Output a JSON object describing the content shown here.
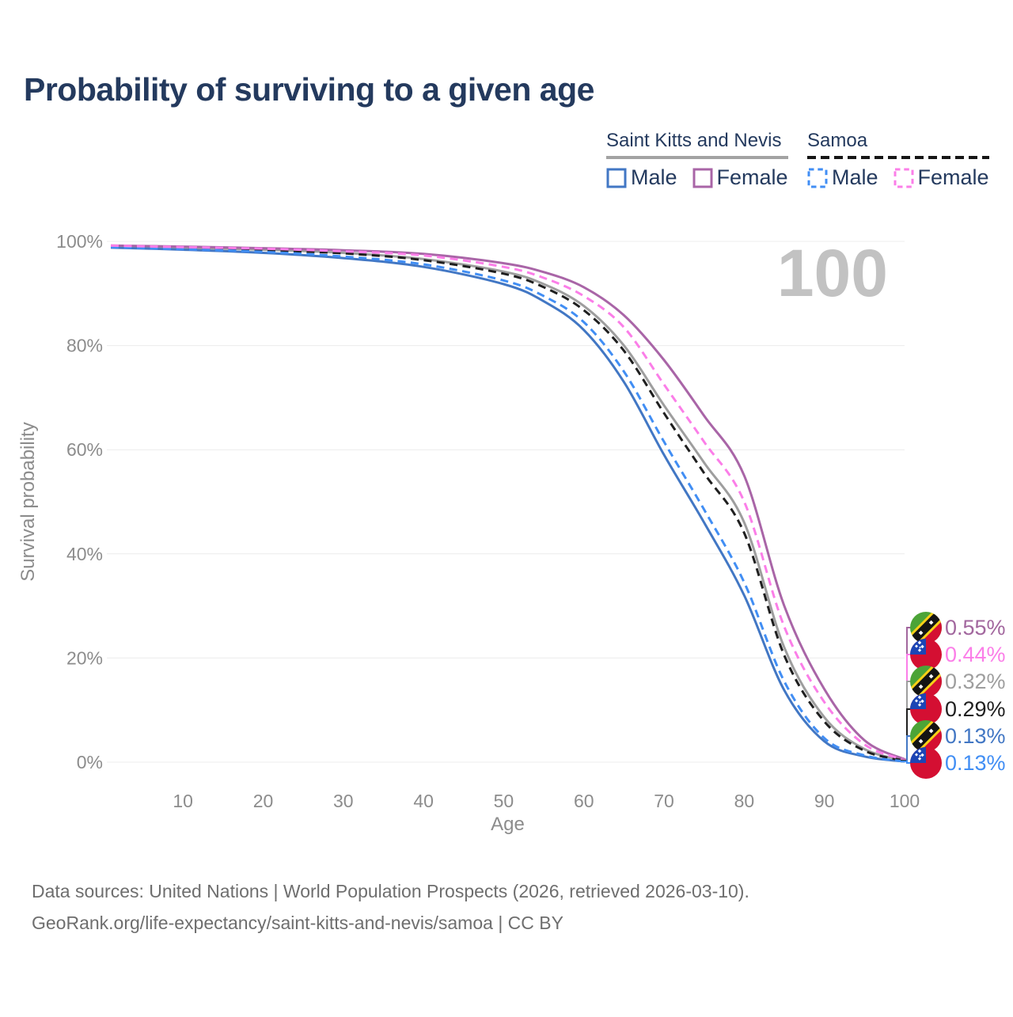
{
  "header": {
    "title": "Probability of surviving to a given age"
  },
  "legend": {
    "groups": [
      {
        "name": "Saint Kitts and Nevis",
        "line_style": "solid",
        "underline_color": "#a3a3a3",
        "items": [
          {
            "label": "Male",
            "color": "#4277c4",
            "dashed": false
          },
          {
            "label": "Female",
            "color": "#a965a7",
            "dashed": false
          }
        ]
      },
      {
        "name": "Samoa",
        "line_style": "dashed",
        "underline_color": "#151515",
        "items": [
          {
            "label": "Male",
            "color": "#418ef4",
            "dashed": true
          },
          {
            "label": "Female",
            "color": "#fb7ee8",
            "dashed": true
          }
        ]
      }
    ]
  },
  "chart_data": {
    "type": "line",
    "title": "Probability of surviving to a given age",
    "xlabel": "Age",
    "ylabel": "Survival probability",
    "xlim": [
      1,
      100
    ],
    "ylim": [
      0,
      100
    ],
    "grid": "horizontal",
    "x_ticks": [
      10,
      20,
      30,
      40,
      50,
      60,
      70,
      80,
      90,
      100
    ],
    "y_ticks": [
      0,
      20,
      40,
      60,
      80,
      100
    ],
    "y_tick_suffix": "%",
    "watermark": "100",
    "ages": [
      1,
      10,
      20,
      30,
      40,
      50,
      55,
      60,
      65,
      70,
      75,
      80,
      85,
      90,
      95,
      100
    ],
    "series": [
      {
        "id": "skn_all",
        "name": "Saint Kitts and Nevis — All",
        "country": "Saint Kitts and Nevis",
        "sex": "All",
        "color": "#9e9e9e",
        "dashed": false,
        "values": [
          99.1,
          98.8,
          98.4,
          97.8,
          96.6,
          94.2,
          91.8,
          87.6,
          80.0,
          68.5,
          57.5,
          46.0,
          22.0,
          8.6,
          2.5,
          0.32
        ]
      },
      {
        "id": "skn_male",
        "name": "Saint Kitts and Nevis — Male",
        "country": "Saint Kitts and Nevis",
        "sex": "Male",
        "color": "#4277c4",
        "dashed": false,
        "values": [
          98.8,
          98.4,
          97.8,
          96.8,
          95.1,
          91.8,
          88.5,
          83.0,
          73.0,
          59.0,
          46.0,
          32.0,
          13.8,
          4.0,
          1.1,
          0.13
        ]
      },
      {
        "id": "skn_female",
        "name": "Saint Kitts and Nevis — Female",
        "country": "Saint Kitts and Nevis",
        "sex": "Female",
        "color": "#a965a7",
        "dashed": false,
        "values": [
          99.2,
          99.0,
          98.7,
          98.3,
          97.6,
          95.8,
          94.1,
          91.2,
          85.8,
          77.2,
          66.5,
          55.0,
          30.0,
          14.0,
          4.2,
          0.55
        ]
      },
      {
        "id": "samoa_all",
        "name": "Samoa — All",
        "country": "Samoa",
        "sex": "All",
        "color": "#1f1f1f",
        "dashed": true,
        "values": [
          99.0,
          98.7,
          98.3,
          97.7,
          96.4,
          93.8,
          91.2,
          86.8,
          79.0,
          67.0,
          55.5,
          44.0,
          20.5,
          7.8,
          2.2,
          0.29
        ]
      },
      {
        "id": "samoa_male",
        "name": "Samoa — Male",
        "country": "Samoa",
        "sex": "Male",
        "color": "#418ef4",
        "dashed": true,
        "values": [
          98.9,
          98.5,
          98.0,
          97.1,
          95.6,
          92.5,
          89.5,
          84.5,
          75.0,
          61.5,
          48.5,
          34.5,
          15.5,
          4.6,
          1.3,
          0.13
        ]
      },
      {
        "id": "samoa_female",
        "name": "Samoa — Female",
        "country": "Samoa",
        "sex": "Female",
        "color": "#fb7ee8",
        "dashed": true,
        "values": [
          99.2,
          98.9,
          98.6,
          98.1,
          97.3,
          95.1,
          93.0,
          89.5,
          83.5,
          72.5,
          61.5,
          50.0,
          26.0,
          11.5,
          3.4,
          0.44
        ]
      }
    ],
    "end_labels": [
      {
        "flag_icon": "saint-kitts-and-nevis-flag-icon",
        "series": "skn_female",
        "value": "0.55%",
        "color": "#a2679e"
      },
      {
        "flag_icon": "samoa-flag-icon",
        "series": "samoa_female",
        "value": "0.44%",
        "color": "#fb7ee8"
      },
      {
        "flag_icon": "saint-kitts-and-nevis-flag-icon",
        "series": "skn_all",
        "value": "0.32%",
        "color": "#9e9e9e"
      },
      {
        "flag_icon": "samoa-flag-icon",
        "series": "samoa_all",
        "value": "0.29%",
        "color": "#1f1f1f"
      },
      {
        "flag_icon": "saint-kitts-and-nevis-flag-icon",
        "series": "skn_male",
        "value": "0.13%",
        "color": "#4277c4"
      },
      {
        "flag_icon": "samoa-flag-icon",
        "series": "samoa_male",
        "value": "0.13%",
        "color": "#418ef4"
      }
    ],
    "legend_position": "top-right"
  },
  "footer": {
    "line1": "Data sources: United Nations | World Population Prospects (2026, retrieved 2026-03-10).",
    "line2": "GeoRank.org/life-expectancy/saint-kitts-and-nevis/samoa | CC BY"
  }
}
